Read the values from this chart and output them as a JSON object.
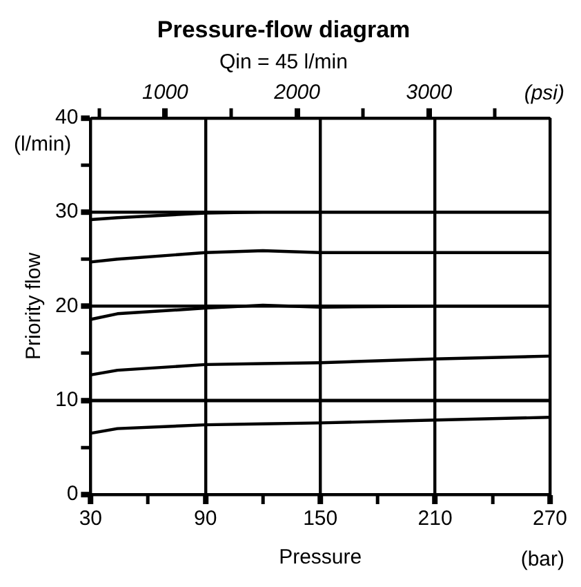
{
  "chart_data": {
    "type": "line",
    "title": "Pressure-flow diagram",
    "subtitle": "Qin = 45 l/min",
    "xlabel": "Pressure",
    "ylabel": "Priority flow",
    "x2label": "(psi)",
    "annotations": [
      "(bar)",
      "(l/min)"
    ],
    "x": [
      30,
      44,
      90,
      120,
      150,
      210,
      270
    ],
    "series": [
      {
        "color": "#000000",
        "values": [
          6.5,
          7.0,
          7.4,
          7.5,
          7.6,
          7.9,
          8.2
        ]
      },
      {
        "color": "#000000",
        "values": [
          10,
          10,
          10,
          10,
          10,
          10,
          10
        ]
      },
      {
        "color": "#000000",
        "values": [
          12.7,
          13.2,
          13.8,
          13.9,
          14.0,
          14.4,
          14.7
        ]
      },
      {
        "color": "#000000",
        "values": [
          18.6,
          19.2,
          19.8,
          20.1,
          19.9,
          20,
          20
        ]
      },
      {
        "color": "#000000",
        "values": [
          24.7,
          25.0,
          25.7,
          25.9,
          25.7,
          25.7,
          25.7
        ]
      },
      {
        "color": "#000000",
        "values": [
          29.2,
          29.4,
          29.9,
          30,
          30,
          30,
          30
        ]
      }
    ],
    "xlim": [
      30,
      270
    ],
    "xticks": [
      30,
      {
        "value": 60,
        "label": null
      },
      90,
      {
        "value": 120,
        "label": null
      },
      150,
      {
        "value": 180,
        "label": null
      },
      210,
      {
        "value": 240,
        "label": null
      },
      270
    ],
    "x2lim": [
      435,
      3916
    ],
    "x2ticks": [
      {
        "value": 500,
        "label": null
      },
      1000,
      {
        "value": 1500,
        "label": null
      },
      2000,
      {
        "value": 2500,
        "label": null
      },
      3000,
      {
        "value": 3500,
        "label": null
      }
    ],
    "ylim": [
      0,
      40
    ],
    "yticks": [
      0,
      {
        "value": 5,
        "label": null
      },
      10,
      {
        "value": 15,
        "label": null
      },
      20,
      {
        "value": 25,
        "label": null
      },
      30,
      {
        "value": 35,
        "label": null
      },
      40
    ],
    "grid": true,
    "legend": false,
    "marker": "none",
    "line_style": "solid"
  }
}
